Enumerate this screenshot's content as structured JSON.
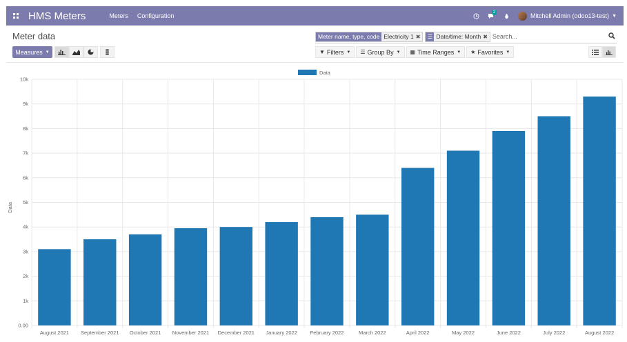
{
  "navbar": {
    "app_title": "HMS Meters",
    "menu": [
      "Meters",
      "Configuration"
    ],
    "chat_badge": "2",
    "user_name": "Mitchell Admin (odoo13-test)"
  },
  "control": {
    "breadcrumb": "Meter data",
    "facets": [
      {
        "label": "Meter name, type, code",
        "value": "Electricity 1"
      },
      {
        "label": "",
        "value": "Date/time: Month"
      }
    ],
    "search_placeholder": "Search...",
    "measures_label": "Measures",
    "filters_label": "Filters",
    "groupby_label": "Group By",
    "timeranges_label": "Time Ranges",
    "favorites_label": "Favorites"
  },
  "colors": {
    "navbar": "#7c7bad",
    "bar": "#1f77b4"
  },
  "chart_data": {
    "type": "bar",
    "categories": [
      "August 2021",
      "September 2021",
      "October 2021",
      "November 2021",
      "December 2021",
      "January 2022",
      "February 2022",
      "March 2022",
      "April 2022",
      "May 2022",
      "June 2022",
      "July 2022",
      "August 2022"
    ],
    "series": [
      {
        "name": "Data",
        "values": [
          3100,
          3500,
          3700,
          3950,
          4000,
          4200,
          4400,
          4500,
          6400,
          7100,
          7900,
          8500,
          9300
        ]
      }
    ],
    "ylabel": "Data",
    "ylim": [
      0,
      10000
    ],
    "yticks": [
      "0.00",
      "1k",
      "2k",
      "3k",
      "4k",
      "5k",
      "6k",
      "7k",
      "8k",
      "9k",
      "10k"
    ],
    "legend_position": "top-center",
    "grid": true
  }
}
